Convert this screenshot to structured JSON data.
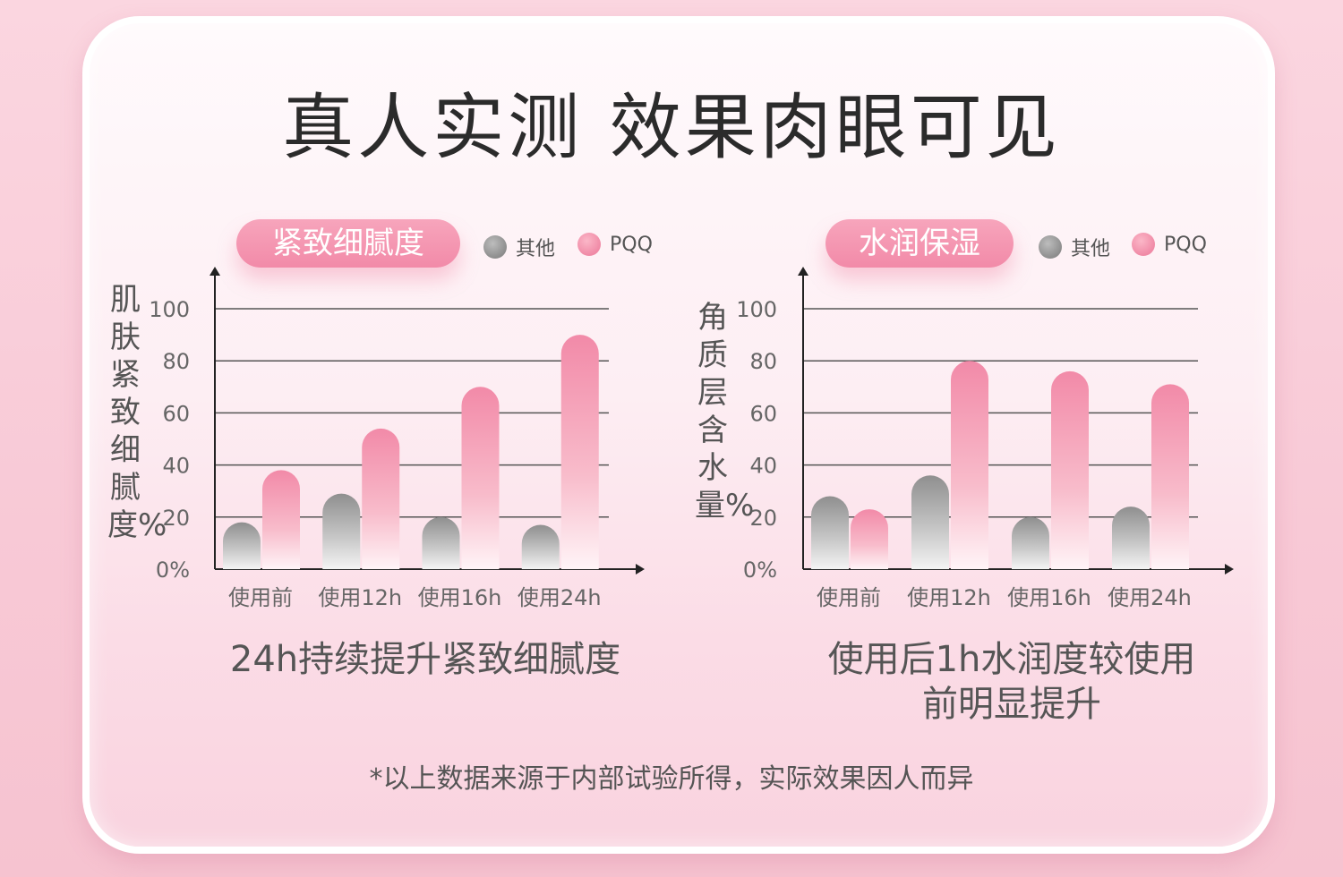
{
  "title": "真人实测  效果肉眼可见",
  "footnote": "*以上数据来源于内部试验所得，实际效果因人而异",
  "legend": {
    "other": "其他",
    "pqq": "PQQ"
  },
  "colors": {
    "other": "#9e9e9e",
    "pqq": "#f28aa8",
    "badge": "#f28aa8"
  },
  "chart_data": [
    {
      "type": "bar",
      "title": "紧致细腻度",
      "ylabel": "肌肤紧致细腻度%",
      "caption": "24h持续提升紧致细腻度",
      "categories": [
        "使用前",
        "使用12h",
        "使用16h",
        "使用24h"
      ],
      "yticks": [
        "0%",
        "20",
        "40",
        "60",
        "80",
        "100"
      ],
      "ylim": [
        0,
        100
      ],
      "grid": true,
      "legend_position": "top-right",
      "series": [
        {
          "name": "其他",
          "values": [
            18,
            29,
            20,
            17
          ]
        },
        {
          "name": "PQQ",
          "values": [
            38,
            54,
            70,
            90
          ]
        }
      ]
    },
    {
      "type": "bar",
      "title": "水润保湿",
      "ylabel": "角质层含水量%",
      "caption": "使用后1h水润度较使用前明显提升",
      "categories": [
        "使用前",
        "使用12h",
        "使用16h",
        "使用24h"
      ],
      "yticks": [
        "0%",
        "20",
        "40",
        "60",
        "80",
        "100"
      ],
      "ylim": [
        0,
        100
      ],
      "grid": true,
      "legend_position": "top-right",
      "series": [
        {
          "name": "其他",
          "values": [
            28,
            36,
            20,
            24
          ]
        },
        {
          "name": "PQQ",
          "values": [
            23,
            80,
            76,
            71
          ]
        }
      ]
    }
  ]
}
